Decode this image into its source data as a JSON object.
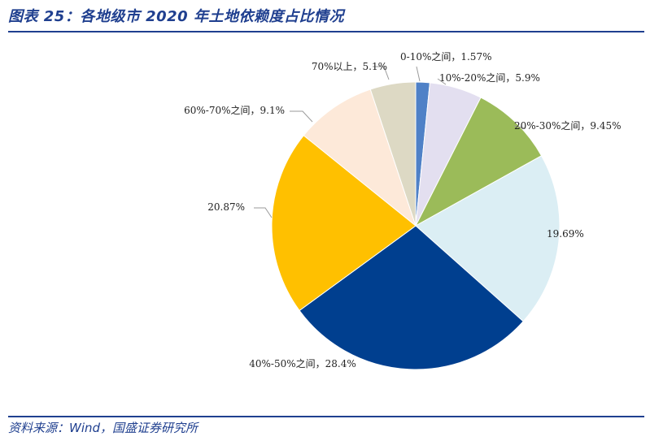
{
  "figure": {
    "title": "图表 25：各地级市 2020 年土地依赖度占比情况",
    "source": "资料来源：Wind，国盛证券研究所"
  },
  "chart_data": {
    "type": "pie",
    "title": "",
    "slices": [
      {
        "category": "0-10%之间",
        "value": 1.57,
        "label": "0-10%之间，1.57%",
        "color": "#4f81c7"
      },
      {
        "category": "10%-20%之间",
        "value": 5.9,
        "label": "10%-20%之间，5.9%",
        "color": "#e3dff0"
      },
      {
        "category": "20%-30%之间",
        "value": 9.45,
        "label": "20%-30%之间，9.45%",
        "color": "#9bbb59"
      },
      {
        "category": "",
        "value": 19.69,
        "label": "19.69%",
        "color": "#dbeef4"
      },
      {
        "category": "40%-50%之间",
        "value": 28.4,
        "label": "40%-50%之间，28.4%",
        "color": "#003f8f"
      },
      {
        "category": "",
        "value": 20.87,
        "label": "20.87%",
        "color": "#ffc000"
      },
      {
        "category": "60%-70%之间",
        "value": 9.1,
        "label": "60%-70%之间，9.1%",
        "color": "#fde9d9"
      },
      {
        "category": "70%以上",
        "value": 5.1,
        "label": "70%以上，5.1%",
        "color": "#ddd9c4"
      }
    ],
    "start_angle": "12 o'clock",
    "direction": "clockwise",
    "legend": "none"
  }
}
